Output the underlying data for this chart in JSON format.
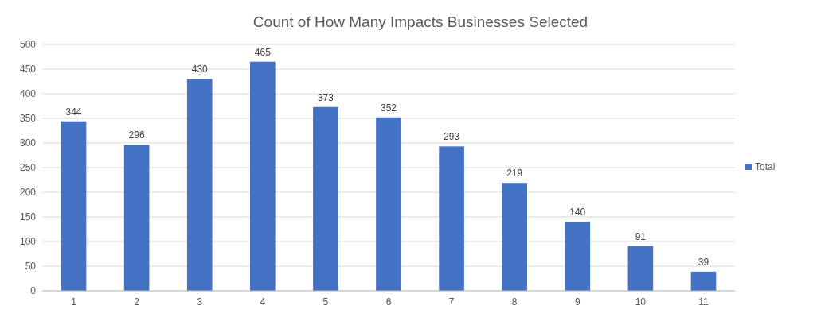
{
  "chart_data": {
    "type": "bar",
    "title": "Count of How Many Impacts Businesses Selected",
    "categories": [
      "1",
      "2",
      "3",
      "4",
      "5",
      "6",
      "7",
      "8",
      "9",
      "10",
      "11"
    ],
    "series": [
      {
        "name": "Total",
        "color": "#4472c4",
        "values": [
          344,
          296,
          430,
          465,
          373,
          352,
          293,
          219,
          140,
          91,
          39
        ]
      }
    ],
    "ylim": [
      0,
      500
    ],
    "yticks": [
      0,
      50,
      100,
      150,
      200,
      250,
      300,
      350,
      400,
      450,
      500
    ],
    "grid": "y",
    "legend": "right",
    "data_labels": true
  }
}
